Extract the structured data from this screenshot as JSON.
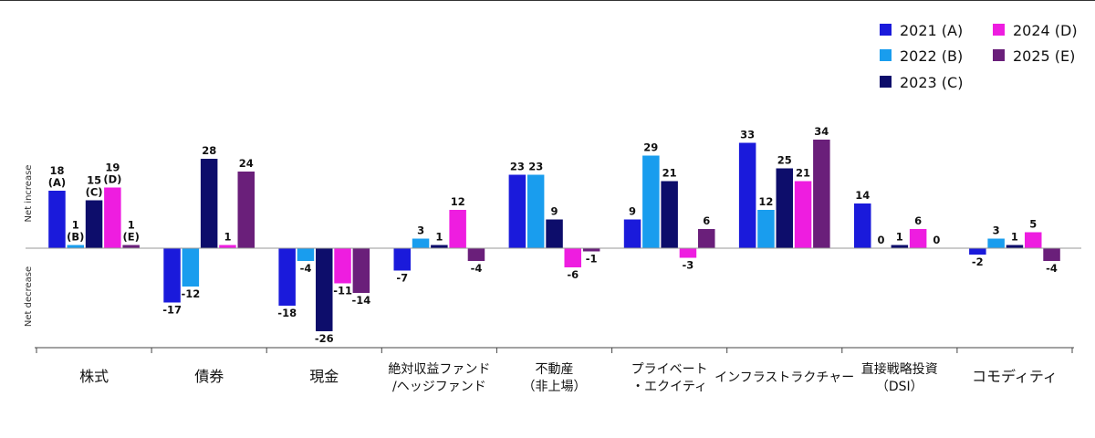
{
  "chart_data": {
    "type": "bar",
    "title": "",
    "xlabel": "",
    "ylabel_top": "Net increase",
    "ylabel_bottom": "Net decrease",
    "ylim": [
      -28,
      38
    ],
    "grid": false,
    "legend_position": "top-right",
    "categories": [
      [
        "株式"
      ],
      [
        "債券"
      ],
      [
        "現金"
      ],
      [
        "絶対収益ファンド",
        "/ヘッジファンド"
      ],
      [
        "不動産",
        "（非上場）"
      ],
      [
        "プライベート",
        "・エクイティ"
      ],
      [
        "インフラストラクチャー"
      ],
      [
        "直接戦略投資",
        "（DSI）"
      ],
      [
        "コモディティ"
      ]
    ],
    "series": [
      {
        "name": "2021 (A)",
        "color": "#1a1adb",
        "values": [
          18,
          -17,
          -18,
          -7,
          23,
          9,
          33,
          14,
          -2
        ],
        "labels": [
          "18|(A)",
          "-17",
          "-18",
          "-7",
          "23",
          "9",
          "33",
          "14",
          "-2"
        ]
      },
      {
        "name": "2022 (B)",
        "color": "#199dee",
        "values": [
          1,
          -12,
          -4,
          3,
          23,
          29,
          12,
          0,
          3
        ],
        "labels": [
          "1|(B)",
          "-12",
          "-4",
          "3",
          "23",
          "29",
          "12",
          "0",
          "3"
        ]
      },
      {
        "name": "2023 (C)",
        "color": "#0d0d6b",
        "values": [
          15,
          28,
          -26,
          1,
          9,
          21,
          25,
          1,
          1
        ],
        "labels": [
          "15|(C)",
          "28",
          "-26",
          "1",
          "9",
          "21",
          "25",
          "1",
          "1"
        ]
      },
      {
        "name": "2024 (D)",
        "color": "#ee1de0",
        "values": [
          19,
          1,
          -11,
          12,
          -6,
          -3,
          21,
          6,
          5
        ],
        "labels": [
          "19|(D)",
          "1",
          "-11",
          "12",
          "-6",
          "-3",
          "21",
          "6",
          "5"
        ]
      },
      {
        "name": "2025 (E)",
        "color": "#6a1f7a",
        "values": [
          1,
          24,
          -14,
          -4,
          -1,
          6,
          34,
          0,
          -4
        ],
        "labels": [
          "1|(E)",
          "24",
          "-14",
          "-4",
          "-1",
          "6",
          "34",
          "0",
          "-4"
        ]
      }
    ]
  }
}
